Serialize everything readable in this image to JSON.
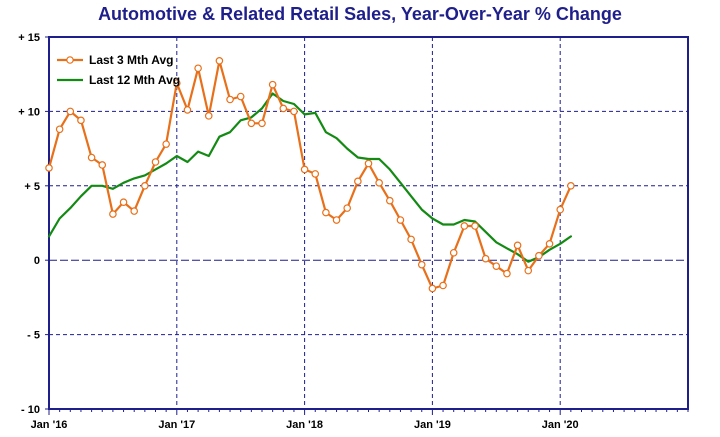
{
  "colors": {
    "series1": "#e8701a",
    "series2": "#138a13",
    "frame": "#1f1f8c",
    "grid": "#1f1f8c",
    "title": "#1f1f8c"
  },
  "chart_data": {
    "type": "line",
    "title": "Automotive & Related Retail Sales, Year-Over-Year % Change",
    "xlabel": "",
    "ylabel": "",
    "ylim": [
      -10,
      15
    ],
    "xlim": [
      0,
      60
    ],
    "grid": true,
    "legend_position": "top-left",
    "y_ticks": [
      {
        "value": 15,
        "label": "+ 15"
      },
      {
        "value": 10,
        "label": "+ 10"
      },
      {
        "value": 5,
        "label": "+ 5"
      },
      {
        "value": 0,
        "label": "0"
      },
      {
        "value": -5,
        "label": "- 5"
      },
      {
        "value": -10,
        "label": "- 10"
      }
    ],
    "x_ticks": [
      {
        "value": 0,
        "label": "Jan '16"
      },
      {
        "value": 12,
        "label": "Jan '17"
      },
      {
        "value": 24,
        "label": "Jan '18"
      },
      {
        "value": 36,
        "label": "Jan '19"
      },
      {
        "value": 48,
        "label": "Jan '20"
      }
    ],
    "series": [
      {
        "name": "Last 3 Mth Avg",
        "markers": true,
        "x": [
          0,
          1,
          2,
          3,
          4,
          5,
          6,
          7,
          8,
          9,
          10,
          11,
          12,
          13,
          14,
          15,
          16,
          17,
          18,
          19,
          20,
          21,
          22,
          23,
          24,
          25,
          26,
          27,
          28,
          29,
          30,
          31,
          32,
          33,
          34,
          35,
          36,
          37,
          38,
          39,
          40,
          41,
          42,
          43,
          44,
          45,
          46,
          47,
          48,
          49
        ],
        "values": [
          6.2,
          8.8,
          10.0,
          9.4,
          6.9,
          6.4,
          3.1,
          3.9,
          3.3,
          5.0,
          6.6,
          7.8,
          11.9,
          10.1,
          12.9,
          9.7,
          13.4,
          10.8,
          11.0,
          9.2,
          9.2,
          11.8,
          10.2,
          10.0,
          6.1,
          5.8,
          3.2,
          2.7,
          3.5,
          5.3,
          6.5,
          5.2,
          4.0,
          2.7,
          1.4,
          -0.3,
          -1.9,
          -1.7,
          0.5,
          2.3,
          2.3,
          0.1,
          -0.4,
          -0.9,
          1.0,
          -0.7,
          0.3,
          1.1,
          3.4,
          5.0
        ]
      },
      {
        "name": "Last 12 Mth Avg",
        "markers": false,
        "x": [
          0,
          1,
          2,
          3,
          4,
          5,
          6,
          7,
          8,
          9,
          10,
          11,
          12,
          13,
          14,
          15,
          16,
          17,
          18,
          19,
          20,
          21,
          22,
          23,
          24,
          25,
          26,
          27,
          28,
          29,
          30,
          31,
          32,
          33,
          34,
          35,
          36,
          37,
          38,
          39,
          40,
          41,
          42,
          43,
          44,
          45,
          46,
          47,
          48,
          49
        ],
        "values": [
          1.6,
          2.8,
          3.5,
          4.3,
          5.0,
          5.0,
          4.8,
          5.2,
          5.5,
          5.7,
          6.1,
          6.5,
          7.0,
          6.6,
          7.3,
          7.0,
          8.3,
          8.6,
          9.4,
          9.6,
          10.2,
          11.2,
          10.7,
          10.5,
          9.8,
          9.9,
          8.6,
          8.2,
          7.5,
          6.9,
          6.8,
          6.8,
          6.1,
          5.2,
          4.3,
          3.4,
          2.8,
          2.4,
          2.4,
          2.7,
          2.6,
          1.9,
          1.2,
          0.8,
          0.4,
          -0.1,
          0.2,
          0.7,
          1.1,
          1.6
        ]
      }
    ]
  }
}
